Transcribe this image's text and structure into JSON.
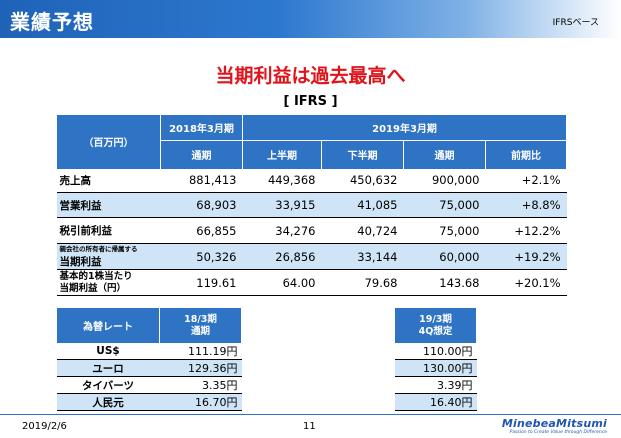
{
  "header": {
    "title": "業績予想",
    "tag": "IFRSベース"
  },
  "headline": "当期利益は過去最高へ",
  "standard": "[ IFRS ]",
  "main_table": {
    "unit": "（百万円）",
    "fy2018": "2018年3月期",
    "fy2019": "2019年3月期",
    "cols": [
      "通期",
      "上半期",
      "下半期",
      "通期",
      "前期比"
    ],
    "rows": [
      {
        "label": "売上高",
        "values": [
          "881,413",
          "449,368",
          "450,632",
          "900,000",
          "+2.1%"
        ]
      },
      {
        "label": "営業利益",
        "values": [
          "68,903",
          "33,915",
          "41,085",
          "75,000",
          "+8.8%"
        ]
      },
      {
        "label": "税引前利益",
        "values": [
          "66,855",
          "34,276",
          "40,724",
          "75,000",
          "+12.2%"
        ]
      },
      {
        "label_small": "親会社の所有者に帰属する",
        "label": "当期利益",
        "values": [
          "50,326",
          "26,856",
          "33,144",
          "60,000",
          "+19.2%"
        ]
      },
      {
        "label_line1": "基本的1株当たり",
        "label_line2": "当期利益（円）",
        "values": [
          "119.61",
          "64.00",
          "79.68",
          "143.68",
          "+20.1%"
        ]
      }
    ]
  },
  "fx_table": {
    "head": "為替レート",
    "col1_line1": "18/3期",
    "col1_line2": "通期",
    "col2_line1": "19/3期",
    "col2_line2": "4Q想定",
    "rows": [
      {
        "label": "US$",
        "v1": "111.19円",
        "v2": "110.00円"
      },
      {
        "label": "ユーロ",
        "v1": "129.36円",
        "v2": "130.00円"
      },
      {
        "label": "タイバーツ",
        "v1": "3.35円",
        "v2": "3.39円"
      },
      {
        "label": "人民元",
        "v1": "16.70円",
        "v2": "16.40円"
      }
    ]
  },
  "footer": {
    "date": "2019/2/6",
    "page": "11",
    "logo": "MinebeaMitsumi",
    "logo_tagline": "Passion to Create Value through Difference"
  }
}
